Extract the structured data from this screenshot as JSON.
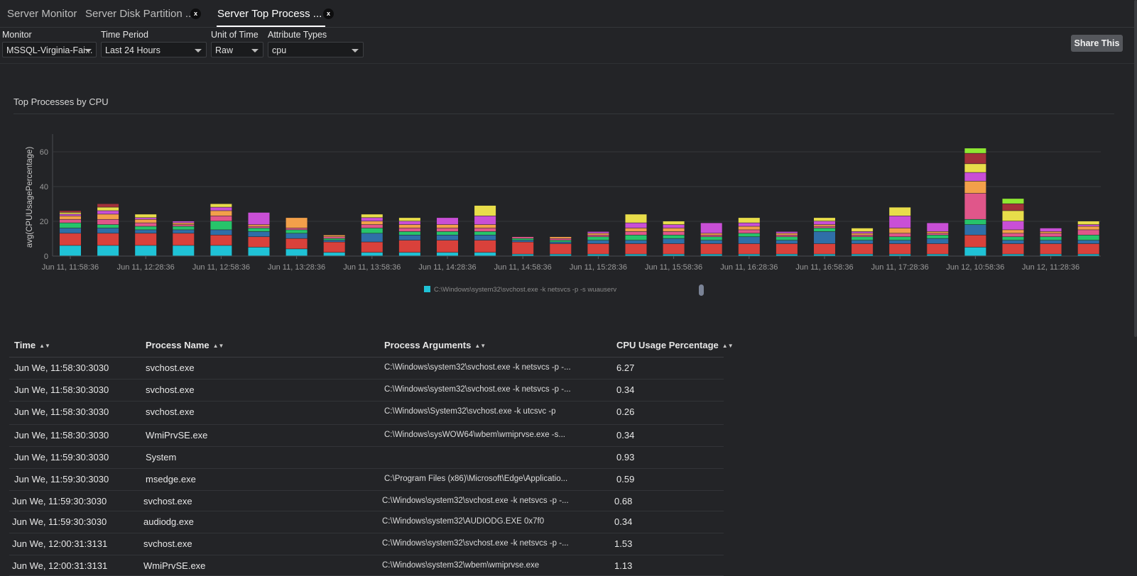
{
  "tabs": [
    {
      "label": "Server Monitor",
      "closable": false,
      "active": false
    },
    {
      "label": "Server Disk Partition ...",
      "closable": true,
      "active": false
    },
    {
      "label": "Server Top Process ...",
      "closable": true,
      "active": true
    }
  ],
  "tab_close_glyph": "x",
  "filters": {
    "monitor": {
      "label": "Monitor",
      "value": "MSSQL-Virginia-Fai..."
    },
    "time_period": {
      "label": "Time Period",
      "value": "Last 24 Hours"
    },
    "unit_of_time": {
      "label": "Unit of Time",
      "value": "Raw"
    },
    "attribute_types": {
      "label": "Attribute Types",
      "value": "cpu"
    }
  },
  "share_label": "Share This",
  "chart_data": {
    "type": "bar",
    "stacked": true,
    "title": "Top Processes by CPU",
    "ylabel": "avg(CPUUsagePercentage)",
    "ylim": [
      0,
      75
    ],
    "yticks": [
      0,
      20,
      40,
      60
    ],
    "grid": true,
    "legend_position": "bottom",
    "legend": [
      {
        "name": "C:\\Windows\\system32\\svchost.exe -k netsvcs -p -s wuauserv",
        "color": "#1fc2d6"
      }
    ],
    "x_tick_labels": [
      "Jun 11, 11:58:36",
      "Jun 11, 12:28:36",
      "Jun 11, 12:58:36",
      "Jun 11, 13:28:36",
      "Jun 11, 13:58:36",
      "Jun 11, 14:28:36",
      "Jun 11, 14:58:36",
      "Jun 11, 15:28:36",
      "Jun 11, 15:58:36",
      "Jun 11, 16:28:36",
      "Jun 11, 16:58:36",
      "Jun 11, 17:28:36",
      "Jun 12, 10:58:36",
      "Jun 12, 11:28:36"
    ],
    "totals": [
      26,
      30,
      24,
      20,
      30,
      25,
      22,
      12,
      24,
      22,
      22,
      29,
      11,
      11,
      14,
      24,
      20,
      19,
      22,
      14,
      22,
      16,
      28,
      19,
      62,
      33,
      16,
      20
    ],
    "palette": [
      "#1fc2d6",
      "#d9413b",
      "#2f6fa8",
      "#27c46a",
      "#e0568a",
      "#f2a04a",
      "#c94fd6",
      "#e8dd4a",
      "#a3303a",
      "#8ee832",
      "#1f8fe8",
      "#9aa83a"
    ],
    "series_per_bar": [
      [
        6,
        7,
        3,
        3,
        2,
        2,
        1,
        1,
        1
      ],
      [
        6,
        7,
        3,
        2,
        3,
        3,
        2,
        2,
        2
      ],
      [
        6,
        7,
        2,
        2,
        2,
        2,
        1,
        2
      ],
      [
        6,
        7,
        2,
        2,
        1,
        1,
        1
      ],
      [
        6,
        6,
        3,
        5,
        3,
        3,
        2,
        2
      ],
      [
        5,
        6,
        3,
        2,
        1,
        1,
        7
      ],
      [
        4,
        6,
        3,
        2,
        1,
        6
      ],
      [
        2,
        6,
        1,
        1,
        1,
        1
      ],
      [
        2,
        6,
        5,
        3,
        2,
        2,
        2,
        2
      ],
      [
        2,
        7,
        3,
        2,
        2,
        2,
        2,
        2
      ],
      [
        2,
        7,
        3,
        2,
        2,
        2,
        4
      ],
      [
        2,
        7,
        3,
        2,
        2,
        2,
        5,
        6
      ],
      [
        1,
        7,
        1,
        1,
        1
      ],
      [
        1,
        6,
        1,
        1,
        1,
        1
      ],
      [
        1,
        6,
        2,
        2,
        1,
        1,
        1
      ],
      [
        1,
        6,
        2,
        3,
        2,
        2,
        3,
        5
      ],
      [
        1,
        6,
        3,
        2,
        2,
        2,
        2,
        2
      ],
      [
        1,
        6,
        2,
        2,
        1,
        1,
        6
      ],
      [
        1,
        6,
        4,
        2,
        2,
        2,
        2,
        3
      ],
      [
        1,
        6,
        2,
        2,
        1,
        1,
        1
      ],
      [
        1,
        6,
        7,
        2,
        1,
        1,
        2,
        2
      ],
      [
        1,
        6,
        2,
        2,
        1,
        1,
        1,
        2
      ],
      [
        1,
        6,
        2,
        2,
        2,
        3,
        7,
        5
      ],
      [
        1,
        6,
        3,
        2,
        1,
        1,
        5
      ],
      [
        5,
        7,
        6,
        3,
        15,
        7,
        5,
        5,
        6,
        3
      ],
      [
        1,
        6,
        2,
        2,
        2,
        2,
        5,
        6,
        4,
        3
      ],
      [
        1,
        6,
        2,
        2,
        2,
        1,
        2
      ],
      [
        1,
        6,
        2,
        3,
        3,
        2,
        1,
        2
      ]
    ]
  },
  "table": {
    "columns": [
      "Time",
      "Process Name",
      "Process Arguments",
      "CPU Usage Percentage"
    ],
    "sort_glyph": "▲▼",
    "rows": [
      [
        "Jun We, 11:58:30:3030",
        "svchost.exe",
        "C:\\Windows\\system32\\svchost.exe -k netsvcs -p -...",
        "6.27"
      ],
      [
        "Jun We, 11:58:30:3030",
        "svchost.exe",
        "C:\\Windows\\system32\\svchost.exe -k netsvcs -p -...",
        "0.34"
      ],
      [
        "Jun We, 11:58:30:3030",
        "svchost.exe",
        "C:\\Windows\\System32\\svchost.exe -k utcsvc -p",
        "0.26"
      ],
      [
        "Jun We, 11:58:30:3030",
        "WmiPrvSE.exe",
        "C:\\Windows\\sysWOW64\\wbem\\wmiprvse.exe -s...",
        "0.34"
      ],
      [
        "Jun We, 11:59:30:3030",
        "System",
        "",
        "0.93"
      ],
      [
        "Jun We, 11:59:30:3030",
        "msedge.exe",
        "C:\\Program Files (x86)\\Microsoft\\Edge\\Applicatio...",
        "0.59"
      ],
      [
        "Jun We, 11:59:30:3030",
        "svchost.exe",
        "C:\\Windows\\system32\\svchost.exe -k netsvcs -p -...",
        "0.68"
      ],
      [
        "Jun We, 11:59:30:3030",
        "audiodg.exe",
        "C:\\Windows\\system32\\AUDIODG.EXE 0x7f0",
        "0.34"
      ],
      [
        "Jun We, 12:00:31:3131",
        "svchost.exe",
        "C:\\Windows\\system32\\svchost.exe -k netsvcs -p -...",
        "1.53"
      ],
      [
        "Jun We, 12:00:31:3131",
        "WmiPrvSE.exe",
        "C:\\Windows\\system32\\wbem\\wmiprvse.exe",
        "1.13"
      ]
    ]
  }
}
